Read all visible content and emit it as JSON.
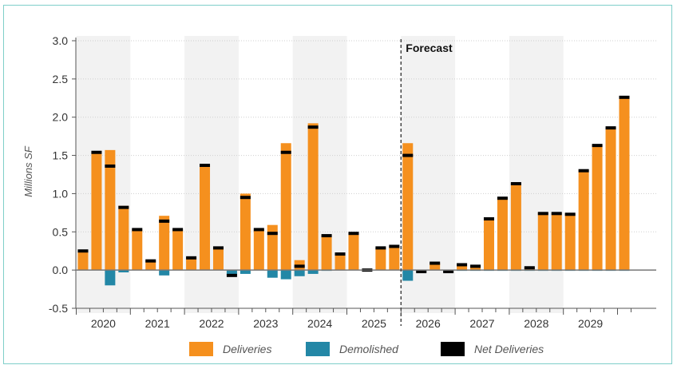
{
  "chart_data": {
    "type": "bar",
    "ylabel": "Millions SF",
    "ylim": [
      -0.5,
      3.0
    ],
    "yticks": [
      "3.0",
      "2.5",
      "2.0",
      "1.5",
      "1.0",
      "0.5",
      "0.0",
      "-0.5"
    ],
    "years": [
      "2020",
      "2021",
      "2022",
      "2023",
      "2024",
      "2025",
      "2026",
      "2027",
      "2028",
      "2029"
    ],
    "forecast_label": "Forecast",
    "forecast_start_index": 24,
    "quarters_per_year": 4,
    "grid": true,
    "legend_position": "bottom",
    "series": [
      {
        "name": "Deliveries",
        "color": "#f5901e",
        "values": [
          0.25,
          1.54,
          1.57,
          0.84,
          0.53,
          0.12,
          0.71,
          0.53,
          0.16,
          1.37,
          0.29,
          0.0,
          1.0,
          0.53,
          0.59,
          1.66,
          0.13,
          1.92,
          0.46,
          0.21,
          0.48,
          0.0,
          0.29,
          0.31,
          1.66,
          0.0,
          0.09,
          0.0,
          0.08,
          0.06,
          0.68,
          0.95,
          1.14,
          0.04,
          0.75,
          0.75,
          0.74,
          1.31,
          1.64,
          1.87,
          2.27
        ]
      },
      {
        "name": "Demolished",
        "color": "#2387a6",
        "values": [
          0.0,
          0.0,
          -0.2,
          -0.03,
          0.0,
          0.0,
          -0.07,
          0.0,
          0.0,
          0.0,
          0.0,
          -0.07,
          -0.05,
          0.0,
          -0.1,
          -0.12,
          -0.08,
          -0.05,
          -0.01,
          0.0,
          0.0,
          0.0,
          0.0,
          0.0,
          -0.14,
          -0.02,
          0.0,
          -0.02,
          -0.01,
          -0.01,
          -0.01,
          -0.01,
          -0.01,
          -0.01,
          -0.01,
          -0.01,
          -0.01,
          -0.01,
          -0.01,
          -0.01,
          -0.01
        ]
      },
      {
        "name": "Net Deliveries",
        "color": "#000000",
        "values": [
          0.25,
          1.54,
          1.36,
          0.82,
          0.53,
          0.12,
          0.64,
          0.53,
          0.16,
          1.37,
          0.29,
          -0.07,
          0.95,
          0.53,
          0.48,
          1.54,
          0.05,
          1.87,
          0.45,
          0.21,
          0.48,
          0.0,
          0.29,
          0.31,
          1.5,
          -0.02,
          0.09,
          -0.02,
          0.07,
          0.05,
          0.67,
          0.94,
          1.13,
          0.03,
          0.74,
          0.74,
          0.73,
          1.3,
          1.63,
          1.86,
          2.26
        ]
      }
    ]
  }
}
